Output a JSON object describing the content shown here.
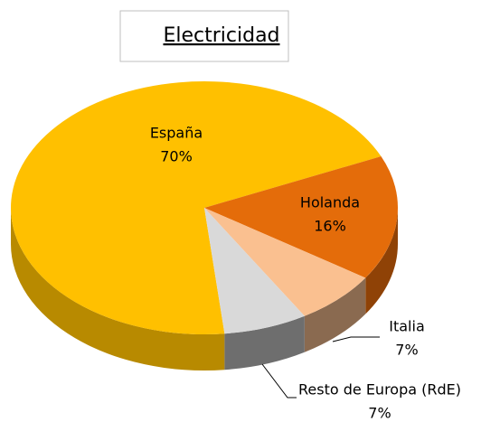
{
  "chart_data": {
    "type": "pie",
    "title": "Electricidad",
    "categories": [
      "España",
      "Holanda",
      "Italia",
      "Resto de Europa (RdE)"
    ],
    "values": [
      70,
      16,
      7,
      7
    ],
    "value_labels": [
      "70%",
      "16%",
      "7%",
      "7%"
    ],
    "colors": [
      "#ffc000",
      "#e46c0a",
      "#fac090",
      "#d9d9d9"
    ],
    "side_colors": [
      "#b88a00",
      "#8f4206",
      "#8a6a50",
      "#6e6e6e"
    ]
  }
}
